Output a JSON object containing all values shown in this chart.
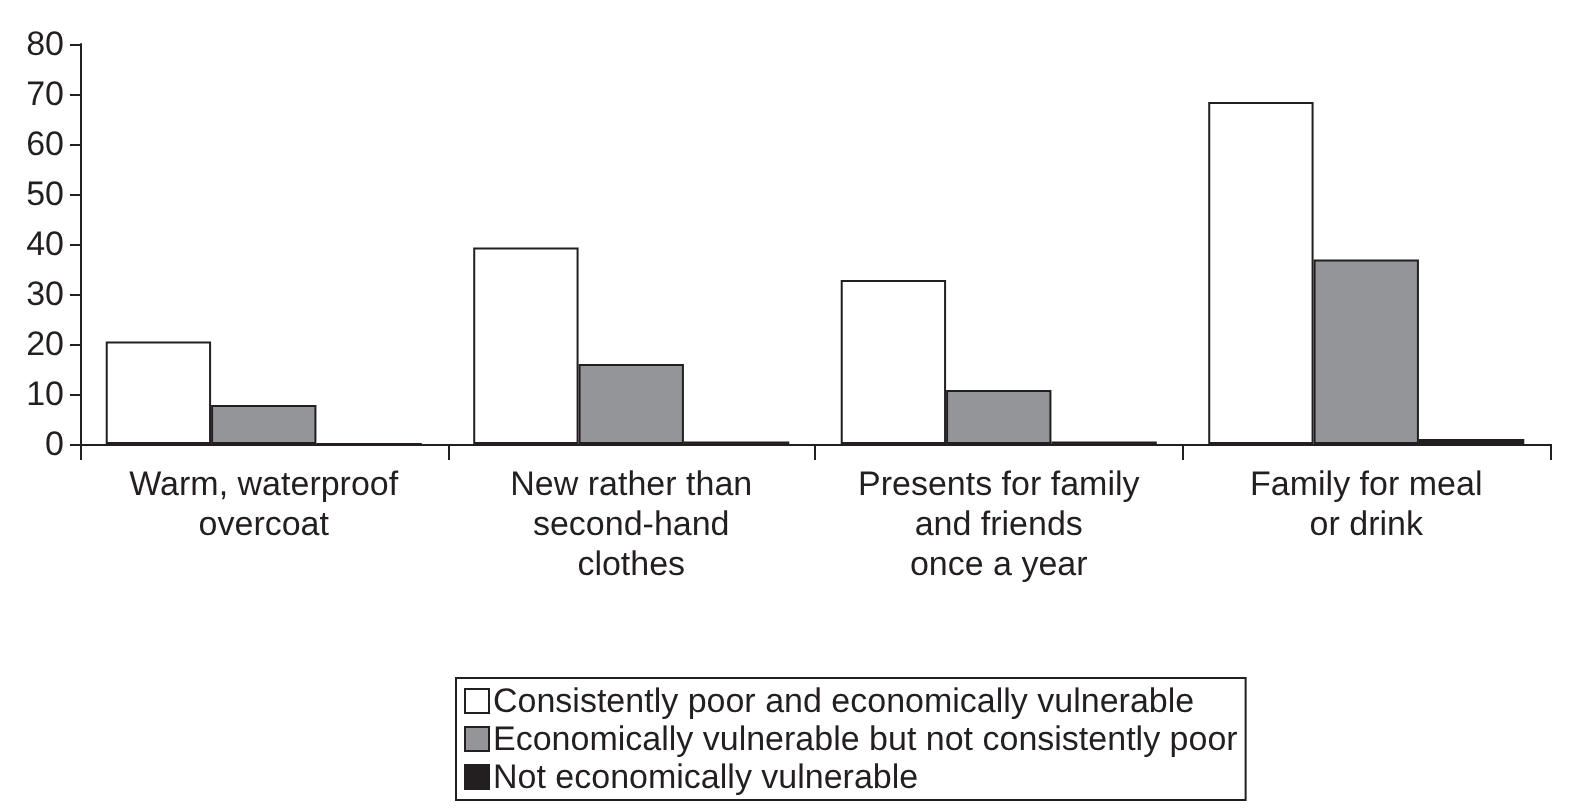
{
  "chart_data": {
    "type": "bar",
    "categories": [
      "Warm, waterproof\novercoat",
      "New rather than\nsecond-hand\nclothes",
      "Presents for family\nand friends\nonce a year",
      "Family for meal\nor drink"
    ],
    "series": [
      {
        "name": "Consistently poor and economically vulnerable",
        "color": "#ffffff",
        "values": [
          20.5,
          39.3,
          32.8,
          68.4
        ]
      },
      {
        "name": "Economically vulnerable but not consistently poor",
        "color": "#939598",
        "values": [
          7.8,
          16,
          10.8,
          36.9
        ]
      },
      {
        "name": "Not economically vulnerable",
        "color": "#231f20",
        "values": [
          0,
          0.5,
          0.5,
          1
        ]
      }
    ],
    "ylim": [
      0,
      80
    ],
    "yticks": [
      0,
      10,
      20,
      30,
      40,
      50,
      60,
      70,
      80
    ],
    "grid": false,
    "legend": "bottom"
  }
}
